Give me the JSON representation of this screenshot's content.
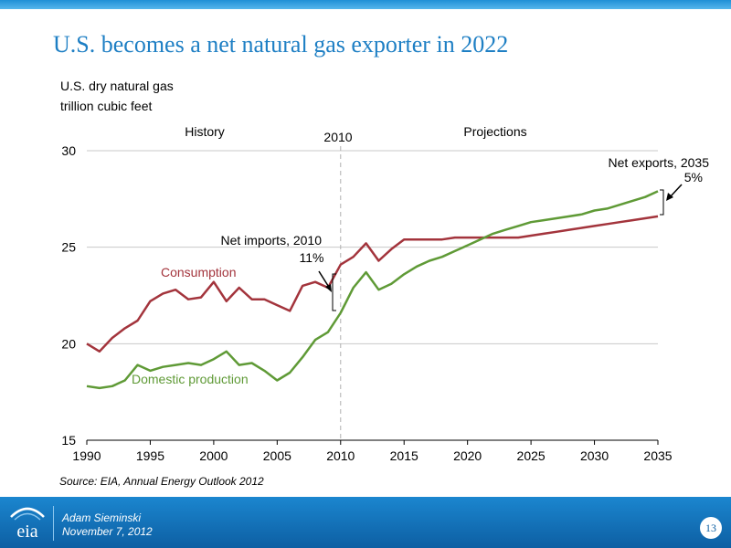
{
  "slide": {
    "title": "U.S. becomes a net natural gas exporter in 2022",
    "source": "Source:  EIA, Annual Energy Outlook 2012"
  },
  "footer": {
    "logo_text": "eia",
    "presenter": "Adam Sieminski",
    "date": "November 7, 2012",
    "page_number": "13"
  },
  "colors": {
    "title": "#1e7fc4",
    "consumption": "#a3343c",
    "production": "#5f9a36",
    "footer": "#1b86cf"
  },
  "chart_data": {
    "type": "line",
    "ylabel_lines": [
      "U.S. dry natural gas",
      "trillion cubic feet"
    ],
    "xlim": [
      1990,
      2035
    ],
    "ylim": [
      15,
      30
    ],
    "xticks": [
      1990,
      1995,
      2000,
      2005,
      2010,
      2015,
      2020,
      2025,
      2030,
      2035
    ],
    "yticks": [
      15,
      20,
      25,
      30
    ],
    "grid": "horizontal",
    "divider_year": 2010,
    "region_labels": {
      "history": "History",
      "divider": "2010",
      "projections": "Projections"
    },
    "series": [
      {
        "name": "Consumption",
        "x": [
          1990,
          1991,
          1992,
          1993,
          1994,
          1995,
          1996,
          1997,
          1998,
          1999,
          2000,
          2001,
          2002,
          2003,
          2004,
          2005,
          2006,
          2007,
          2008,
          2009,
          2010,
          2011,
          2012,
          2013,
          2014,
          2015,
          2016,
          2017,
          2018,
          2019,
          2020,
          2021,
          2022,
          2023,
          2024,
          2025,
          2026,
          2027,
          2028,
          2029,
          2030,
          2031,
          2032,
          2033,
          2034,
          2035
        ],
        "values": [
          20.0,
          19.6,
          20.3,
          20.8,
          21.2,
          22.2,
          22.6,
          22.8,
          22.3,
          22.4,
          23.2,
          22.2,
          22.9,
          22.3,
          22.3,
          22.0,
          21.7,
          23.0,
          23.2,
          22.9,
          24.1,
          24.5,
          25.2,
          24.3,
          24.9,
          25.4,
          25.4,
          25.4,
          25.4,
          25.5,
          25.5,
          25.5,
          25.5,
          25.5,
          25.5,
          25.6,
          25.7,
          25.8,
          25.9,
          26.0,
          26.1,
          26.2,
          26.3,
          26.4,
          26.5,
          26.6
        ]
      },
      {
        "name": "Domestic production",
        "x": [
          1990,
          1991,
          1992,
          1993,
          1994,
          1995,
          1996,
          1997,
          1998,
          1999,
          2000,
          2001,
          2002,
          2003,
          2004,
          2005,
          2006,
          2007,
          2008,
          2009,
          2010,
          2011,
          2012,
          2013,
          2014,
          2015,
          2016,
          2017,
          2018,
          2019,
          2020,
          2021,
          2022,
          2023,
          2024,
          2025,
          2026,
          2027,
          2028,
          2029,
          2030,
          2031,
          2032,
          2033,
          2034,
          2035
        ],
        "values": [
          17.8,
          17.7,
          17.8,
          18.1,
          18.9,
          18.6,
          18.8,
          18.9,
          19.0,
          18.9,
          19.2,
          19.6,
          18.9,
          19.0,
          18.6,
          18.1,
          18.5,
          19.3,
          20.2,
          20.6,
          21.6,
          22.9,
          23.7,
          22.8,
          23.1,
          23.6,
          24.0,
          24.3,
          24.5,
          24.8,
          25.1,
          25.4,
          25.7,
          25.9,
          26.1,
          26.3,
          26.4,
          26.5,
          26.6,
          26.7,
          26.9,
          27.0,
          27.2,
          27.4,
          27.6,
          27.9
        ]
      }
    ],
    "annotations": {
      "consumption_label": "Consumption",
      "production_label": "Domestic production",
      "net_imports_title": "Net imports, 2010",
      "net_imports_value": "11%",
      "net_exports_title": "Net exports, 2035",
      "net_exports_value": "5%"
    }
  }
}
